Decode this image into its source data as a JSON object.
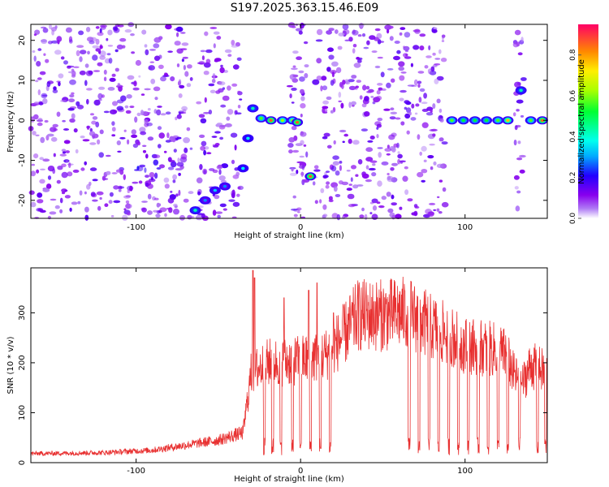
{
  "figure_title": "S197.2025.363.15.46.E09",
  "chart_data": [
    {
      "type": "heatmap",
      "title": "S197.2025.363.15.46.E09",
      "xlabel": "Height of straight line (km)",
      "ylabel": "Frequency (Hz)",
      "xlim": [
        -164,
        150
      ],
      "ylim": [
        -24.5,
        24
      ],
      "xticks": [
        -100,
        0,
        100
      ],
      "yticks": [
        -20,
        -10,
        0,
        10,
        20
      ],
      "colorbar": {
        "label": "Normalized spectral amplitude",
        "range": [
          0,
          0.95
        ],
        "ticks": [
          0.0,
          0.2,
          0.4,
          0.6,
          0.8
        ]
      },
      "gap_regions_km": [
        [
          -66,
          -62
        ],
        [
          -36,
          -7
        ],
        [
          4,
          8
        ],
        [
          88,
          130
        ],
        [
          136,
          150
        ]
      ],
      "signal_track": [
        {
          "x": -64,
          "y": -22.5,
          "amp": 0.45
        },
        {
          "x": -58,
          "y": -20.0,
          "amp": 0.3
        },
        {
          "x": -52,
          "y": -17.5,
          "amp": 0.35
        },
        {
          "x": -46,
          "y": -16.5,
          "amp": 0.3
        },
        {
          "x": -35,
          "y": -12.0,
          "amp": 0.4
        },
        {
          "x": -32,
          "y": -4.5,
          "amp": 0.4
        },
        {
          "x": -29,
          "y": 3.0,
          "amp": 0.45
        },
        {
          "x": -24,
          "y": 0.5,
          "amp": 0.6
        },
        {
          "x": -18,
          "y": 0.0,
          "amp": 0.9
        },
        {
          "x": -11,
          "y": 0.0,
          "amp": 0.65
        },
        {
          "x": -5,
          "y": 0.0,
          "amp": 0.65
        },
        {
          "x": -2,
          "y": -0.5,
          "amp": 0.9
        },
        {
          "x": 6,
          "y": -14.0,
          "amp": 0.9
        },
        {
          "x": 92,
          "y": 0.0,
          "amp": 0.6
        },
        {
          "x": 99,
          "y": 0.0,
          "amp": 0.55
        },
        {
          "x": 106,
          "y": 0.0,
          "amp": 0.55
        },
        {
          "x": 113,
          "y": 0.0,
          "amp": 0.55
        },
        {
          "x": 120,
          "y": 0.0,
          "amp": 0.6
        },
        {
          "x": 126,
          "y": 0.0,
          "amp": 0.8
        },
        {
          "x": 134,
          "y": 7.5,
          "amp": 0.45
        },
        {
          "x": 140,
          "y": 0.0,
          "amp": 0.6
        },
        {
          "x": 147,
          "y": 0.0,
          "amp": 0.9
        }
      ],
      "noise_cluster": {
        "x": -100,
        "y": -11,
        "amp": 0.25
      }
    },
    {
      "type": "line",
      "xlabel": "Height of straight line (km)",
      "ylabel": "SNR (10 * v/v)",
      "xlim": [
        -164,
        150
      ],
      "ylim": [
        0,
        390
      ],
      "xticks": [
        -100,
        0,
        100
      ],
      "yticks": [
        0,
        100,
        200,
        300
      ],
      "series": [
        {
          "name": "SNR",
          "color": "#e83030",
          "envelope": [
            {
              "x": -164,
              "y": 18
            },
            {
              "x": -120,
              "y": 20
            },
            {
              "x": -90,
              "y": 25
            },
            {
              "x": -70,
              "y": 35
            },
            {
              "x": -50,
              "y": 45
            },
            {
              "x": -35,
              "y": 60
            },
            {
              "x": -30,
              "y": 180
            },
            {
              "x": -20,
              "y": 200
            },
            {
              "x": 0,
              "y": 205
            },
            {
              "x": 15,
              "y": 215
            },
            {
              "x": 25,
              "y": 250
            },
            {
              "x": 35,
              "y": 295
            },
            {
              "x": 50,
              "y": 295
            },
            {
              "x": 65,
              "y": 300
            },
            {
              "x": 70,
              "y": 290
            },
            {
              "x": 80,
              "y": 270
            },
            {
              "x": 90,
              "y": 255
            },
            {
              "x": 100,
              "y": 235
            },
            {
              "x": 110,
              "y": 230
            },
            {
              "x": 120,
              "y": 225
            },
            {
              "x": 125,
              "y": 215
            },
            {
              "x": 130,
              "y": 175
            },
            {
              "x": 135,
              "y": 160
            },
            {
              "x": 140,
              "y": 195
            },
            {
              "x": 150,
              "y": 180
            }
          ],
          "spikes": [
            {
              "x": -29,
              "y": 385
            },
            {
              "x": -28,
              "y": 370
            },
            {
              "x": -10,
              "y": 330
            },
            {
              "x": 5,
              "y": 345
            },
            {
              "x": 10,
              "y": 360
            },
            {
              "x": 20,
              "y": 300
            }
          ],
          "dropouts": [
            -22,
            -17,
            -12,
            -5,
            0,
            6,
            12,
            18,
            66,
            72,
            78,
            84,
            90,
            96,
            102,
            108,
            114,
            120,
            126,
            133,
            144,
            149
          ]
        }
      ]
    }
  ]
}
